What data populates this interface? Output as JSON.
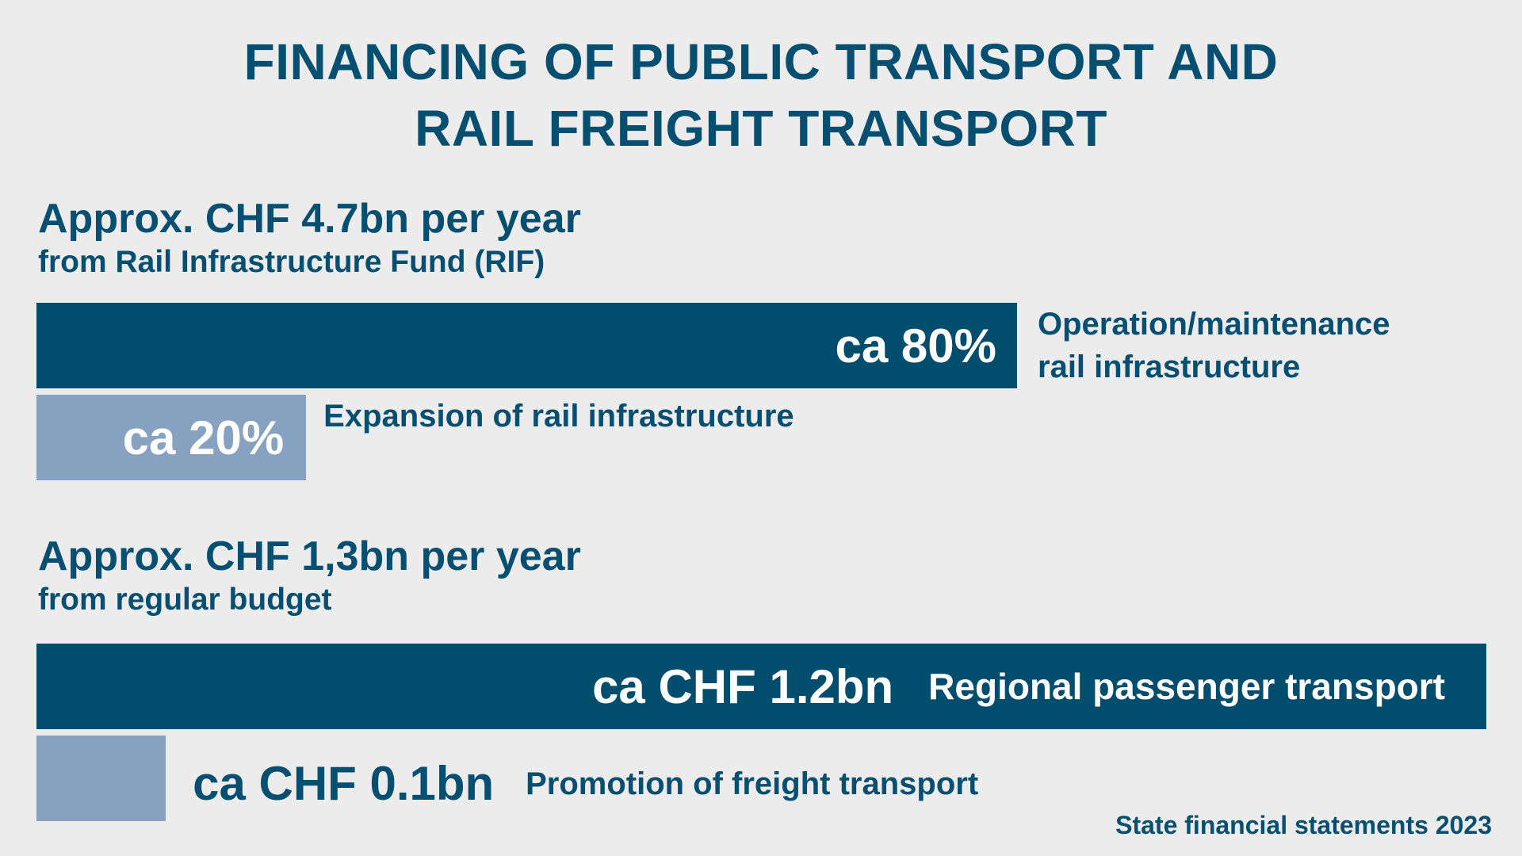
{
  "title": {
    "line1": "FINANCING OF PUBLIC TRANSPORT AND",
    "line2": "RAIL FREIGHT TRANSPORT"
  },
  "source": "State financial statements 2023",
  "colors": {
    "dark": "#014d6d",
    "light": "#87a2c0",
    "text": "#064f70",
    "background": "#ececec"
  },
  "chart_data": [
    {
      "type": "bar",
      "title": "Approx. CHF 4.7bn per year",
      "subtitle": "from Rail Infrastructure Fund (RIF)",
      "orientation": "horizontal",
      "unit": "%",
      "categories": [
        "Operation/maintenance rail infrastructure",
        "Expansion of rail infrastructure"
      ],
      "values": [
        80,
        20
      ],
      "value_labels": [
        "ca 80%",
        "ca 20%"
      ],
      "label_lines": [
        [
          "Operation/maintenance",
          "rail infrastructure"
        ],
        [
          "Expansion of rail infrastructure"
        ]
      ]
    },
    {
      "type": "bar",
      "title": "Approx. CHF 1,3bn per year",
      "subtitle": "from regular budget",
      "orientation": "horizontal",
      "unit": "CHF bn",
      "categories": [
        "Regional passenger transport",
        "Promotion of freight transport"
      ],
      "values": [
        1.2,
        0.1
      ],
      "value_labels": [
        "ca CHF 1.2bn",
        "ca CHF 0.1bn"
      ]
    }
  ]
}
